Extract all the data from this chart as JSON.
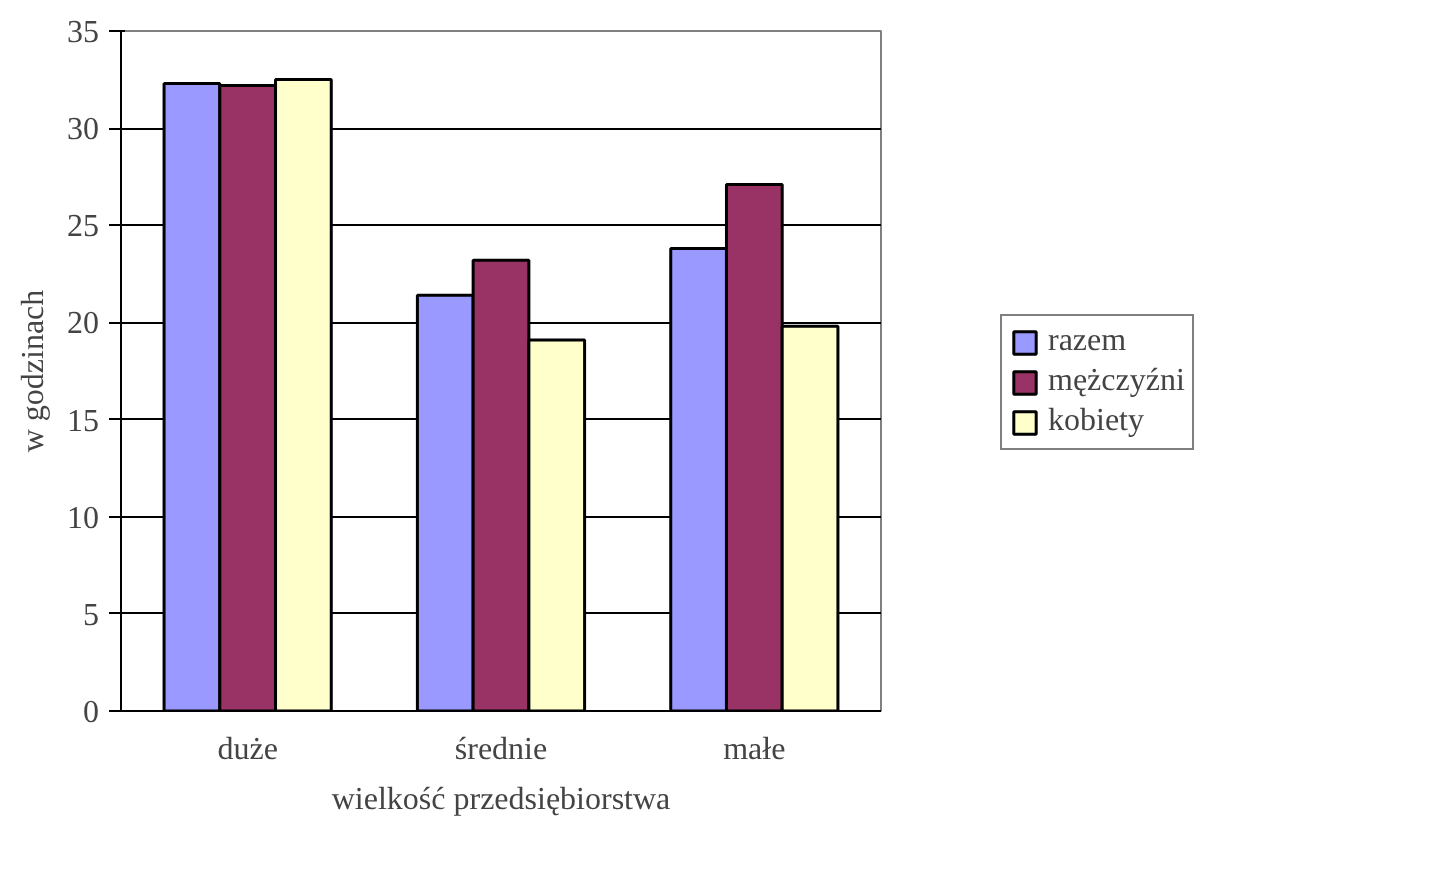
{
  "chart_data": {
    "type": "bar",
    "xlabel": "wielkość przedsiębiorstwa",
    "ylabel": "w godzinach",
    "categories": [
      "duże",
      "średnie",
      "małe"
    ],
    "series": [
      {
        "name": "razem",
        "color": "#9999ff",
        "values": [
          32.3,
          21.4,
          23.8
        ]
      },
      {
        "name": "mężczyźni",
        "color": "#993366",
        "values": [
          32.2,
          23.2,
          27.1
        ]
      },
      {
        "name": "kobiety",
        "color": "#ffffcc",
        "values": [
          32.5,
          19.1,
          19.8
        ]
      }
    ],
    "ylim": [
      0,
      35
    ],
    "yticks": [
      0,
      5,
      10,
      15,
      20,
      25,
      30,
      35
    ],
    "grid": "y",
    "legend": "right"
  }
}
